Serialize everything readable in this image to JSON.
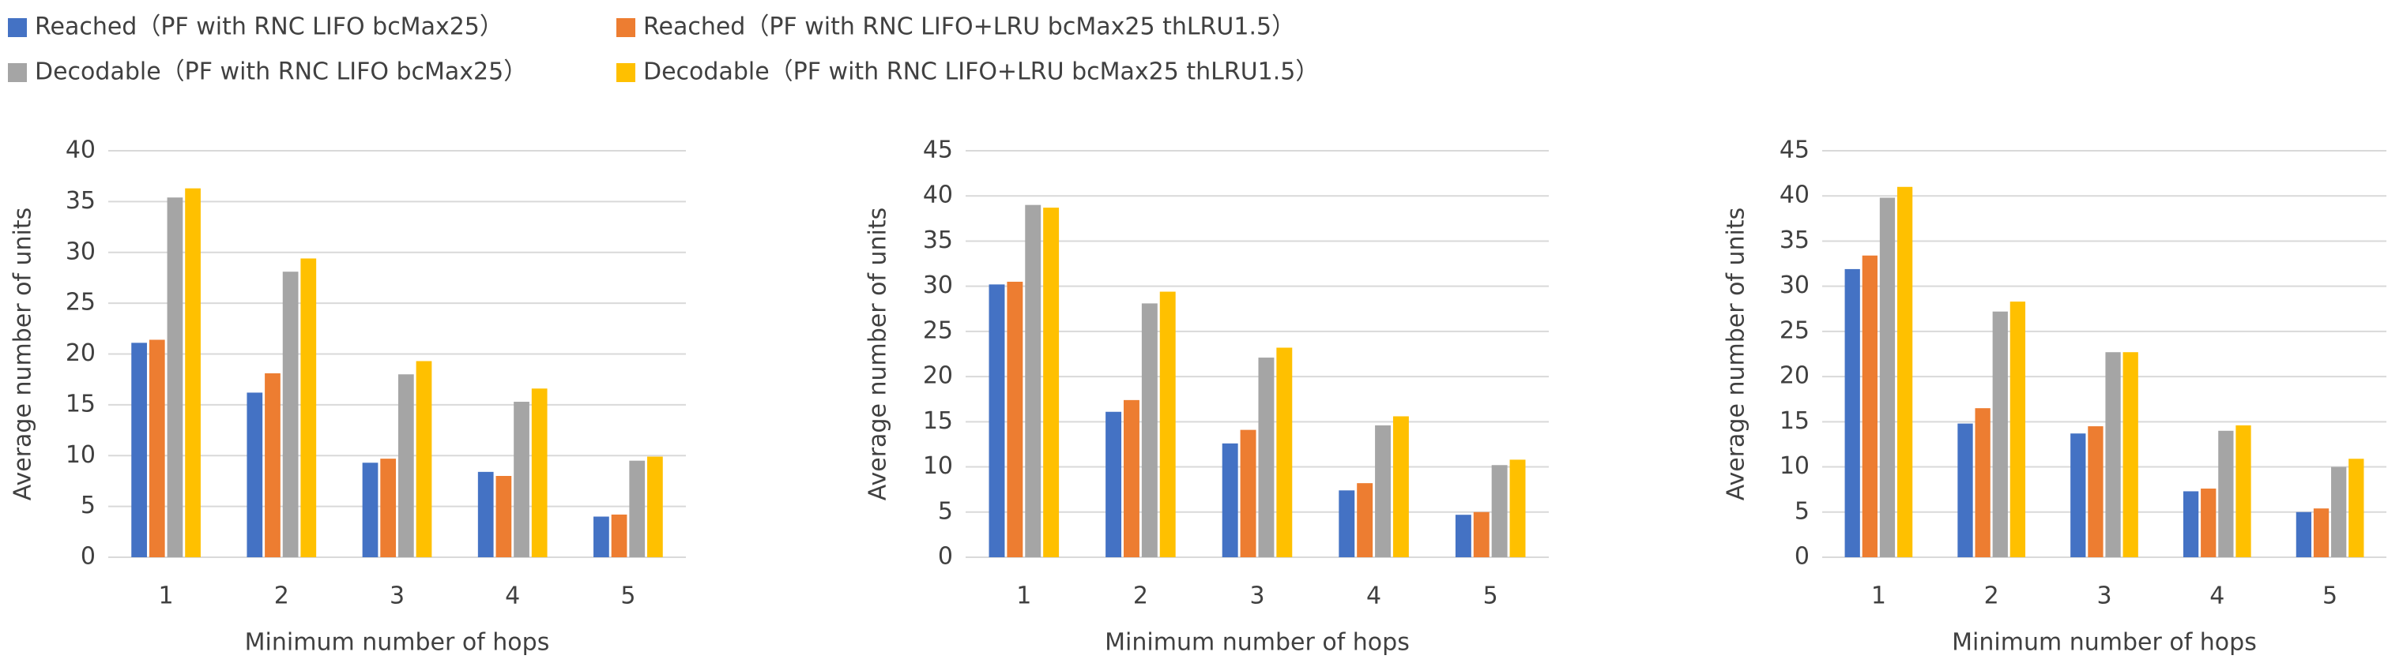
{
  "chart_data": [
    {
      "type": "bar",
      "y_label": "Average number of units",
      "x_label": "Minimum number of hops",
      "categories": [
        "1",
        "2",
        "3",
        "4",
        "5"
      ],
      "ylim": [
        0,
        40
      ],
      "yticks": [
        0,
        5,
        10,
        15,
        20,
        25,
        30,
        35,
        40
      ],
      "grid": true,
      "series": [
        {
          "name": "Reached（PF with RNC LIFO bcMax25）",
          "color": "#4472c4",
          "values": [
            21.1,
            16.2,
            9.3,
            8.4,
            4.0
          ]
        },
        {
          "name": "Reached（PF with RNC LIFO+LRU bcMax25 thLRU1.5）",
          "color": "#ed7d31",
          "values": [
            21.4,
            18.1,
            9.7,
            8.0,
            4.2
          ]
        },
        {
          "name": "Decodable（PF with RNC LIFO bcMax25）",
          "color": "#a5a5a5",
          "values": [
            35.4,
            28.1,
            18.0,
            15.3,
            9.5
          ]
        },
        {
          "name": "Decodable（PF with RNC LIFO+LRU bcMax25 thLRU1.5）",
          "color": "#ffc000",
          "values": [
            36.3,
            29.4,
            19.3,
            16.6,
            9.9
          ]
        }
      ]
    },
    {
      "type": "bar",
      "y_label": "Average number of units",
      "x_label": "Minimum number of hops",
      "categories": [
        "1",
        "2",
        "3",
        "4",
        "5"
      ],
      "ylim": [
        0,
        45
      ],
      "yticks": [
        0,
        5,
        10,
        15,
        20,
        25,
        30,
        35,
        40,
        45
      ],
      "grid": true,
      "series": [
        {
          "color": "#4472c4",
          "values": [
            30.2,
            16.1,
            12.6,
            7.4,
            4.7
          ]
        },
        {
          "color": "#ed7d31",
          "values": [
            30.5,
            17.4,
            14.1,
            8.2,
            5.0
          ]
        },
        {
          "color": "#a5a5a5",
          "values": [
            39.0,
            28.1,
            22.1,
            14.6,
            10.2
          ]
        },
        {
          "color": "#ffc000",
          "values": [
            38.7,
            29.4,
            23.2,
            15.6,
            10.8
          ]
        }
      ]
    },
    {
      "type": "bar",
      "y_label": "Average number of units",
      "x_label": "Minimum number of hops",
      "categories": [
        "1",
        "2",
        "3",
        "4",
        "5"
      ],
      "ylim": [
        0,
        45
      ],
      "yticks": [
        0,
        5,
        10,
        15,
        20,
        25,
        30,
        35,
        40,
        45
      ],
      "grid": true,
      "series": [
        {
          "color": "#4472c4",
          "values": [
            31.9,
            14.8,
            13.7,
            7.3,
            5.0
          ]
        },
        {
          "color": "#ed7d31",
          "values": [
            33.4,
            16.5,
            14.5,
            7.6,
            5.4
          ]
        },
        {
          "color": "#a5a5a5",
          "values": [
            39.8,
            27.2,
            22.7,
            14.0,
            10.0
          ]
        },
        {
          "color": "#ffc000",
          "values": [
            41.0,
            28.3,
            22.7,
            14.6,
            10.9
          ]
        }
      ]
    }
  ]
}
